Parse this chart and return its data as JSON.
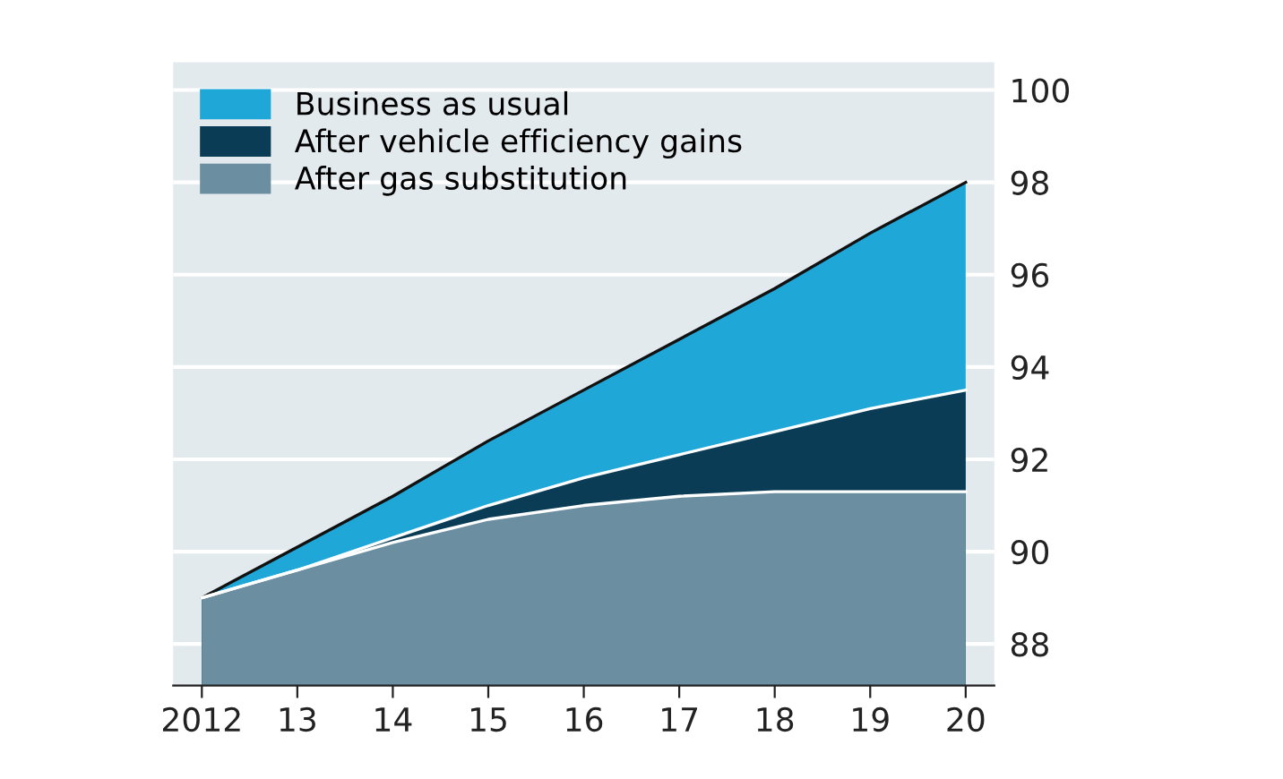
{
  "chart_data": {
    "type": "area",
    "x": [
      2012,
      2013,
      2014,
      2015,
      2016,
      2017,
      2018,
      2019,
      2020
    ],
    "series": [
      {
        "name": "Business as usual",
        "color": "#1ea7d7",
        "values": [
          89,
          90.1,
          91.2,
          92.4,
          93.5,
          94.6,
          95.7,
          96.9,
          98
        ]
      },
      {
        "name": "After vehicle efficiency gains",
        "color": "#0a3d55",
        "values": [
          89,
          89.6,
          90.3,
          91.0,
          91.6,
          92.1,
          92.6,
          93.1,
          93.5
        ]
      },
      {
        "name": "After gas substitution",
        "color": "#6b8fa0",
        "values": [
          89,
          89.6,
          90.2,
          90.7,
          91.0,
          91.2,
          91.3,
          91.3,
          91.3
        ]
      }
    ],
    "xlim": [
      2011.7,
      2020.3
    ],
    "xticks": [
      {
        "value": 2012,
        "label": "2012"
      },
      {
        "value": 2013,
        "label": "13"
      },
      {
        "value": 2014,
        "label": "14"
      },
      {
        "value": 2015,
        "label": "15"
      },
      {
        "value": 2016,
        "label": "16"
      },
      {
        "value": 2017,
        "label": "17"
      },
      {
        "value": 2018,
        "label": "18"
      },
      {
        "value": 2019,
        "label": "19"
      },
      {
        "value": 2020,
        "label": "20"
      }
    ],
    "ylim": [
      87.1,
      100.6
    ],
    "yticks": [
      88,
      90,
      92,
      94,
      96,
      98,
      100
    ],
    "grid": "y",
    "legend": "top left"
  }
}
